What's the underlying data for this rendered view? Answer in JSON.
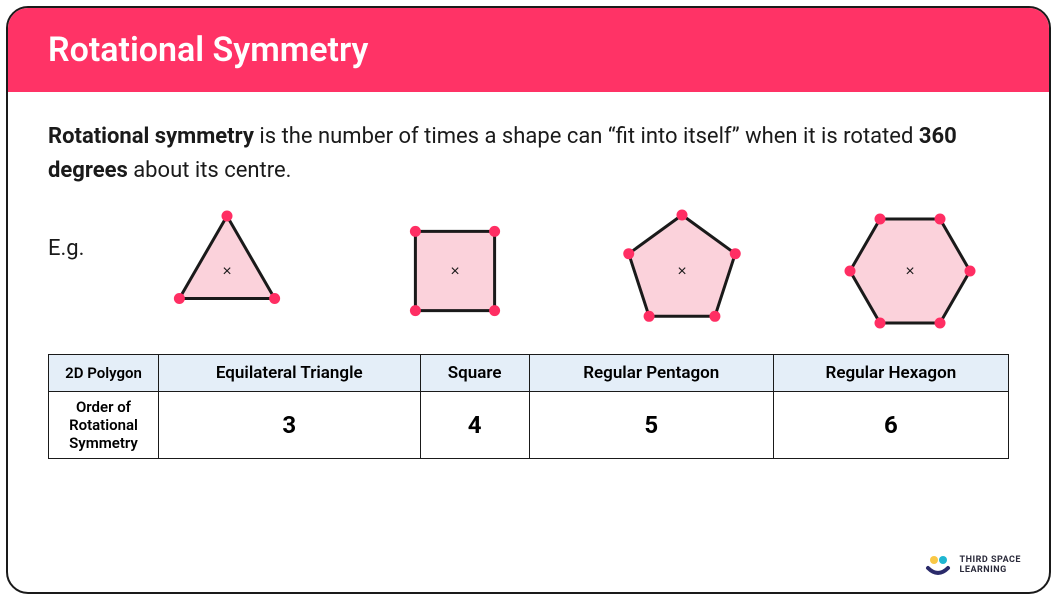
{
  "colors": {
    "header_bg": "#ff3366",
    "header_text": "#ffffff",
    "card_border": "#1a1a1a",
    "card_bg": "#ffffff",
    "body_text": "#1a1a1a",
    "shape_fill": "#fbd2db",
    "shape_stroke": "#1a1a1a",
    "vertex_fill": "#ff2e63",
    "table_header_bg": "#e4eef8",
    "table_border": "#1a1a1a"
  },
  "header": {
    "title": "Rotational Symmetry"
  },
  "definition": {
    "strong_lead": "Rotational symmetry",
    "text_1": " is the number of times a shape can “fit into itself” when it is rotated ",
    "strong_deg": "360 degrees",
    "text_2": " about its centre."
  },
  "example_label": "E.g.",
  "shapes": [
    {
      "name": "Equilateral Triangle",
      "sides": 3,
      "svg_size": 120,
      "radius": 55,
      "rotation_deg": -90,
      "center_mark": "×",
      "vertex_radius": 5.5
    },
    {
      "name": "Square",
      "sides": 4,
      "svg_size": 120,
      "radius": 56,
      "rotation_deg": -45,
      "center_mark": "×",
      "vertex_radius": 5.5
    },
    {
      "name": "Regular Pentagon",
      "sides": 5,
      "svg_size": 120,
      "radius": 56,
      "rotation_deg": -90,
      "center_mark": "×",
      "vertex_radius": 5.5
    },
    {
      "name": "Regular Hexagon",
      "sides": 6,
      "svg_size": 120,
      "radius": 60,
      "rotation_deg": 0,
      "center_mark": "×",
      "vertex_radius": 5.5
    }
  ],
  "table": {
    "row1_label": "2D Polygon",
    "row2_label": "Order of Rotational Symmetry",
    "columns": [
      "Equilateral Triangle",
      "Square",
      "Regular Pentagon",
      "Regular Hexagon"
    ],
    "values": [
      "3",
      "4",
      "5",
      "6"
    ]
  },
  "logo": {
    "line1": "THIRD SPACE",
    "line2": "LEARNING",
    "dot_colors": [
      "#f9c846",
      "#1fb6d1",
      "#1fb6d1"
    ],
    "smile_color": "#2a2a6a"
  }
}
